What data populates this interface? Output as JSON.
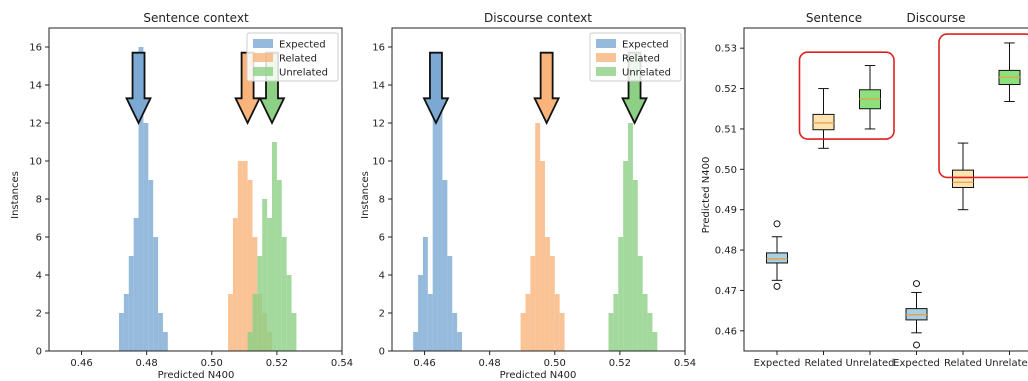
{
  "chart_data": [
    {
      "type": "histogram",
      "title": "Sentence context",
      "xlabel": "Predicted N400",
      "ylabel": "Instances",
      "xlim": [
        0.45,
        0.54
      ],
      "ylim": [
        0,
        17
      ],
      "xticks": [
        "0.46",
        "0.48",
        "0.50",
        "0.52",
        "0.54"
      ],
      "yticks": [
        "0",
        "2",
        "4",
        "6",
        "8",
        "10",
        "12",
        "14",
        "16"
      ],
      "legend_position": "top-right",
      "series": [
        {
          "name": "Expected",
          "color": "#7ca9d3",
          "bin_start": 0.4715,
          "bin_width": 0.0015,
          "counts": [
            2,
            3,
            5,
            7,
            16,
            12,
            9,
            6,
            2,
            1
          ]
        },
        {
          "name": "Related",
          "color": "#f8b47a",
          "bin_start": 0.505,
          "bin_width": 0.0015,
          "counts": [
            3,
            7,
            10,
            10,
            9,
            6,
            3,
            2,
            1
          ]
        },
        {
          "name": "Unrelated",
          "color": "#8ccf85",
          "bin_start": 0.511,
          "bin_width": 0.0015,
          "counts": [
            1,
            3,
            5,
            8,
            7,
            11,
            9,
            6,
            4,
            2
          ]
        }
      ],
      "arrows": [
        {
          "x": 0.4775,
          "color": "#7ca9d3"
        },
        {
          "x": 0.511,
          "color": "#f8b47a"
        },
        {
          "x": 0.5185,
          "color": "#8ccf85"
        }
      ]
    },
    {
      "type": "histogram",
      "title": "Discourse context",
      "xlabel": "Predicted N400",
      "ylabel": "Instances",
      "xlim": [
        0.45,
        0.54
      ],
      "ylim": [
        0,
        17
      ],
      "xticks": [
        "0.46",
        "0.48",
        "0.50",
        "0.52",
        "0.54"
      ],
      "yticks": [
        "0",
        "2",
        "4",
        "6",
        "8",
        "10",
        "12",
        "14",
        "16"
      ],
      "legend_position": "top-right",
      "series": [
        {
          "name": "Expected",
          "color": "#7ca9d3",
          "bin_start": 0.4565,
          "bin_width": 0.0015,
          "counts": [
            1,
            4,
            6,
            3,
            15,
            14,
            9,
            5,
            2,
            1
          ]
        },
        {
          "name": "Related",
          "color": "#f8b47a",
          "bin_start": 0.4895,
          "bin_width": 0.0015,
          "counts": [
            2,
            3,
            5,
            12,
            10,
            6,
            5,
            3,
            2
          ]
        },
        {
          "name": "Unrelated",
          "color": "#8ccf85",
          "bin_start": 0.5165,
          "bin_width": 0.0015,
          "counts": [
            2,
            3,
            6,
            10,
            12,
            9,
            5,
            3,
            2,
            1
          ]
        }
      ],
      "arrows": [
        {
          "x": 0.4635,
          "color": "#7ca9d3"
        },
        {
          "x": 0.4975,
          "color": "#f8b47a"
        },
        {
          "x": 0.5245,
          "color": "#8ccf85"
        }
      ]
    },
    {
      "type": "box",
      "ylabel": "Predicted N400",
      "ylim": [
        0.455,
        0.535
      ],
      "yticks": [
        "0.46",
        "0.47",
        "0.48",
        "0.49",
        "0.50",
        "0.51",
        "0.52",
        "0.53"
      ],
      "group_labels": [
        "Sentence",
        "Discourse"
      ],
      "categories": [
        "Expected",
        "Related",
        "Unrelated",
        "Expected",
        "Related",
        "Unrelated"
      ],
      "boxes": [
        {
          "q1": 0.4768,
          "median": 0.4778,
          "q3": 0.4793,
          "whislo": 0.4725,
          "whishi": 0.4833,
          "fliers": [
            0.471,
            0.4865
          ],
          "color": "#a9cfe0"
        },
        {
          "q1": 0.5098,
          "median": 0.5115,
          "q3": 0.5136,
          "whislo": 0.5052,
          "whishi": 0.52,
          "fliers": [],
          "color": "#fde3b0"
        },
        {
          "q1": 0.515,
          "median": 0.5174,
          "q3": 0.5197,
          "whislo": 0.51,
          "whishi": 0.5257,
          "fliers": [],
          "color": "#8de07e"
        },
        {
          "q1": 0.4627,
          "median": 0.464,
          "q3": 0.4655,
          "whislo": 0.4595,
          "whishi": 0.4695,
          "fliers": [
            0.4565,
            0.4717
          ],
          "color": "#a9cfe0"
        },
        {
          "q1": 0.4955,
          "median": 0.4968,
          "q3": 0.4998,
          "whislo": 0.49,
          "whishi": 0.5065,
          "fliers": [],
          "color": "#fde3b0"
        },
        {
          "q1": 0.521,
          "median": 0.5228,
          "q3": 0.5245,
          "whislo": 0.5168,
          "whishi": 0.5313,
          "fliers": [],
          "color": "#8de07e"
        }
      ],
      "highlight_color": "#e02020"
    }
  ]
}
